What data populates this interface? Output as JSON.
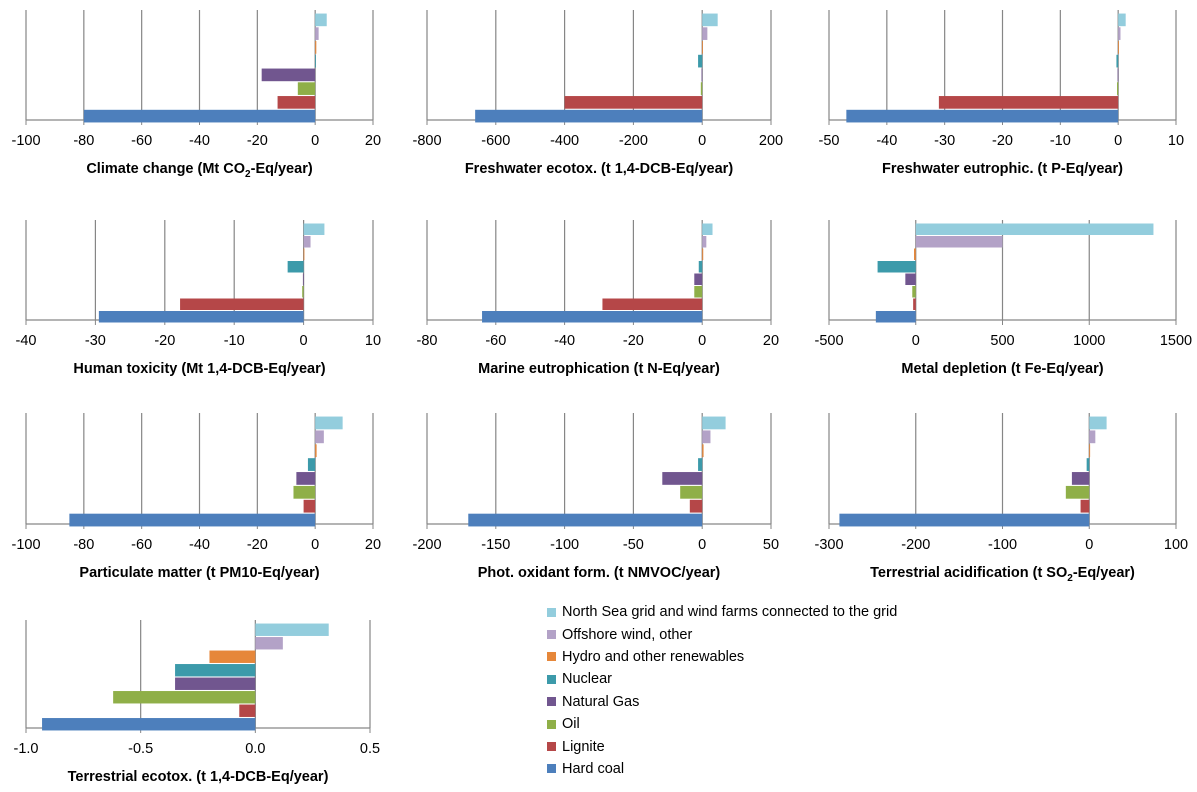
{
  "legend": [
    "North Sea grid and wind farms connected to the grid",
    "Offshore wind, other",
    "Hydro and other renewables",
    "Nuclear",
    "Natural Gas",
    "Oil",
    "Lignite",
    "Hard coal"
  ],
  "colors": [
    "#93CDDD",
    "#B3A2C7",
    "#E6873A",
    "#3C9AAA",
    "#71568F",
    "#8FAF48",
    "#B54748",
    "#4D7FBC"
  ],
  "chart_data": [
    {
      "type": "bar",
      "orientation": "horizontal",
      "title": "Climate change  (Mt CO2-Eq/year)",
      "title_parts": [
        "Climate change  (Mt CO",
        "2",
        "-Eq/year)"
      ],
      "ticks": [
        "-100",
        "-80",
        "-60",
        "-40",
        "-20",
        "0",
        "20"
      ],
      "xlim": [
        -100,
        20
      ],
      "values": [
        4,
        1.2,
        0.4,
        0.2,
        -18.5,
        -6,
        -13,
        -80
      ]
    },
    {
      "type": "bar",
      "orientation": "horizontal",
      "title": "Freshwater ecotox. (t 1,4-DCB-Eq/year)",
      "ticks": [
        "-800",
        "-600",
        "-400",
        "-200",
        "0",
        "200"
      ],
      "xlim": [
        -800,
        200
      ],
      "values": [
        45,
        15,
        2,
        -12,
        -2,
        -4,
        -400,
        -660
      ]
    },
    {
      "type": "bar",
      "orientation": "horizontal",
      "title": "Freshwater eutrophic. (t P-Eq/year)",
      "ticks": [
        "-50",
        "-40",
        "-30",
        "-20",
        "-10",
        "0",
        "10"
      ],
      "xlim": [
        -50,
        10
      ],
      "values": [
        1.3,
        0.4,
        0.1,
        -0.3,
        -0.1,
        -0.2,
        -31,
        -47
      ]
    },
    {
      "type": "bar",
      "orientation": "horizontal",
      "title": "Human toxicity (Mt 1,4-DCB-Eq/year)",
      "ticks": [
        "-40",
        "-30",
        "-20",
        "-10",
        "0",
        "10"
      ],
      "xlim": [
        -40,
        10
      ],
      "values": [
        3,
        1,
        0.1,
        -2.3,
        -0.1,
        -0.2,
        -17.8,
        -29.5
      ]
    },
    {
      "type": "bar",
      "orientation": "horizontal",
      "title": "Marine eutrophication (t N-Eq/year)",
      "ticks": [
        "-80",
        "-60",
        "-40",
        "-20",
        "0",
        "20"
      ],
      "xlim": [
        -80,
        20
      ],
      "values": [
        3,
        1.2,
        0.3,
        -1,
        -2.3,
        -2.3,
        -29,
        -64
      ]
    },
    {
      "type": "bar",
      "orientation": "horizontal",
      "title": "Metal depletion (t Fe-Eq/year)",
      "ticks": [
        "-500",
        "0",
        "500",
        "1000",
        "1500"
      ],
      "xlim": [
        -500,
        1500
      ],
      "values": [
        1370,
        500,
        -10,
        -220,
        -60,
        -20,
        -15,
        -230
      ]
    },
    {
      "type": "bar",
      "orientation": "horizontal",
      "title": "Particulate matter (t PM10-Eq/year)",
      "ticks": [
        "-100",
        "-80",
        "-60",
        "-40",
        "-20",
        "0",
        "20"
      ],
      "xlim": [
        -100,
        20
      ],
      "values": [
        9.5,
        3,
        0.5,
        -2.5,
        -6.5,
        -7.5,
        -4,
        -85
      ]
    },
    {
      "type": "bar",
      "orientation": "horizontal",
      "title": "Phot. oxidant form. (t NMVOC/year)",
      "ticks": [
        "-200",
        "-150",
        "-100",
        "-50",
        "0",
        "50"
      ],
      "xlim": [
        -200,
        50
      ],
      "values": [
        17,
        6,
        1,
        -3,
        -29,
        -16,
        -9,
        -170
      ]
    },
    {
      "type": "bar",
      "orientation": "horizontal",
      "title": "Terrestrial acidification (t SO2-Eq/year)",
      "title_parts": [
        "Terrestrial acidification (t SO",
        "2",
        "-Eq/year)"
      ],
      "ticks": [
        "-300",
        "-200",
        "-100",
        "0",
        "100"
      ],
      "xlim": [
        -300,
        100
      ],
      "values": [
        20,
        7,
        1,
        -3,
        -20,
        -27,
        -10,
        -288
      ]
    },
    {
      "type": "bar",
      "orientation": "horizontal",
      "title": "Terrestrial ecotox. (t 1,4-DCB-Eq/year)",
      "ticks": [
        "-1.0",
        "-0.5",
        "0.0",
        "0.5"
      ],
      "xlim": [
        -1,
        0.5
      ],
      "values": [
        0.32,
        0.12,
        -0.2,
        -0.35,
        -0.35,
        -0.62,
        -0.07,
        -0.93
      ]
    }
  ]
}
